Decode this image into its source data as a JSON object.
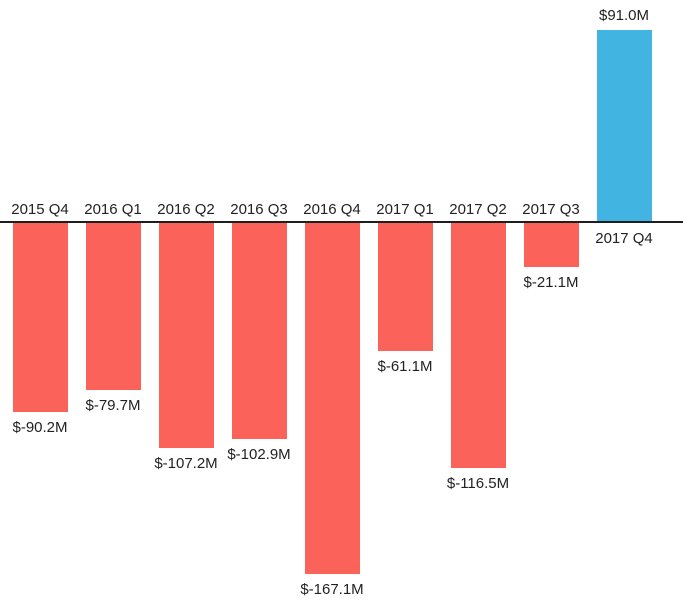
{
  "chart_data": {
    "type": "bar",
    "title": "",
    "xlabel": "",
    "ylabel": "",
    "ylim": [
      -180,
      100
    ],
    "grid": false,
    "legend_position": "none",
    "categories": [
      "2015 Q4",
      "2016 Q1",
      "2016 Q2",
      "2016 Q3",
      "2016 Q4",
      "2017 Q1",
      "2017 Q2",
      "2017 Q3",
      "2017 Q4"
    ],
    "values": [
      -90.2,
      -79.7,
      -107.2,
      -102.9,
      -167.1,
      -61.1,
      -116.5,
      -21.1,
      91.0
    ],
    "value_labels": [
      "$-90.2M",
      "$-79.7M",
      "$-107.2M",
      "$-102.9M",
      "$-167.1M",
      "$-61.1M",
      "$-116.5M",
      "$-21.1M",
      "$91.0M"
    ],
    "unit": "USD millions",
    "colors": {
      "negative_bar": "#fa625a",
      "positive_bar": "#41b4e1",
      "axis_line": "#1e1e1e",
      "label_text": "#222222"
    }
  }
}
